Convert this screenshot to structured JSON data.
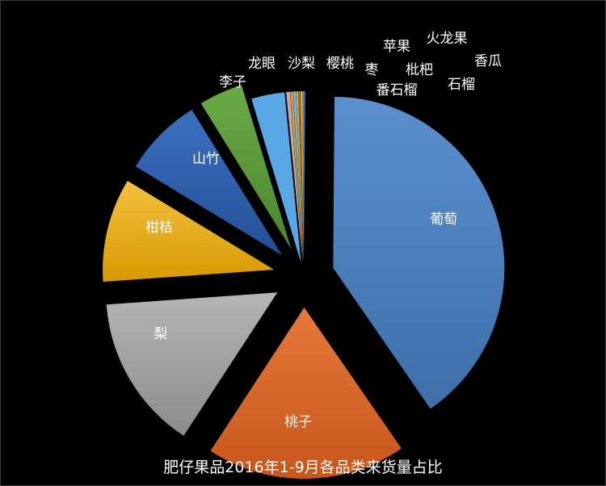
{
  "chart_data": {
    "type": "pie",
    "title": "肥仔果品2016年1-9月各品类来货量占比",
    "legend": "none",
    "slices": [
      {
        "label": "葡萄",
        "value": 39.8,
        "color": "#4a7ebb"
      },
      {
        "label": "桃子",
        "value": 18.6,
        "color": "#e06c28"
      },
      {
        "label": "梨",
        "value": 14.5,
        "color": "#a5a5a5"
      },
      {
        "label": "柑桔",
        "value": 9.7,
        "color": "#f2b200"
      },
      {
        "label": "山竹",
        "value": 7.4,
        "color": "#2f5fad"
      },
      {
        "label": "李子",
        "value": 4.1,
        "color": "#5a9a3a"
      },
      {
        "label": "龙眼",
        "value": 0.01,
        "color": "#264b7a"
      },
      {
        "label": "沙梨",
        "value": 3.1,
        "color": "#5aa7e6"
      },
      {
        "label": "樱桃",
        "value": 0.35,
        "color": "#b0b0b0"
      },
      {
        "label": "枣",
        "value": 0.25,
        "color": "#e9903a"
      },
      {
        "label": "苹果",
        "value": 0.25,
        "color": "#7cb0e0"
      },
      {
        "label": "番石榴",
        "value": 0.2,
        "color": "#9bc263"
      },
      {
        "label": "枇杷",
        "value": 0.2,
        "color": "#c55a1a"
      },
      {
        "label": "火龙果",
        "value": 0.15,
        "color": "#e6c24a"
      },
      {
        "label": "石榴",
        "value": 0.12,
        "color": "#7f7f7f"
      },
      {
        "label": "香瓜",
        "value": 0.12,
        "color": "#4f79c4"
      }
    ]
  }
}
